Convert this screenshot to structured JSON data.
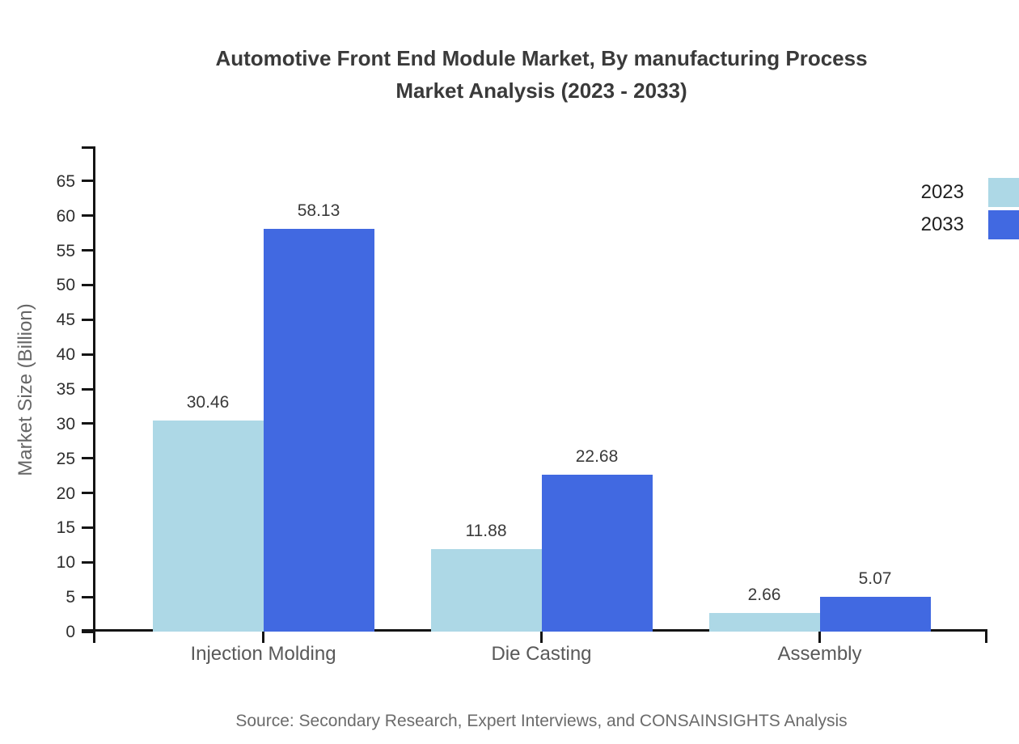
{
  "chart_data": {
    "type": "bar",
    "title": "Automotive Front End Module Market, By manufacturing Process",
    "title_line2": "Market Analysis (2023 - 2033)",
    "ylabel": "Market Size (Billion)",
    "xlabel": "",
    "categories": [
      "Injection Molding",
      "Die Casting",
      "Assembly"
    ],
    "series": [
      {
        "name": "2023",
        "color": "#add8e6",
        "values": [
          30.46,
          11.88,
          2.66
        ]
      },
      {
        "name": "2033",
        "color": "#4169e1",
        "values": [
          58.13,
          22.68,
          5.07
        ]
      }
    ],
    "ylim": [
      0,
      70
    ],
    "yticks": [
      0,
      5,
      10,
      15,
      20,
      25,
      30,
      35,
      40,
      45,
      50,
      55,
      60,
      65
    ],
    "grid": false,
    "legend_position": "top-right",
    "value_label_decimals": 2
  },
  "source": {
    "text": "Source: Secondary Research, Expert Interviews, and CONSAINSIGHTS Analysis"
  },
  "colors": {
    "axis": "#141414",
    "title": "#3a3a3a",
    "tick_label": "#2e2e2e",
    "category_label": "#595959",
    "value_label": "#3a3a3a",
    "source": "#6b6b6b"
  }
}
